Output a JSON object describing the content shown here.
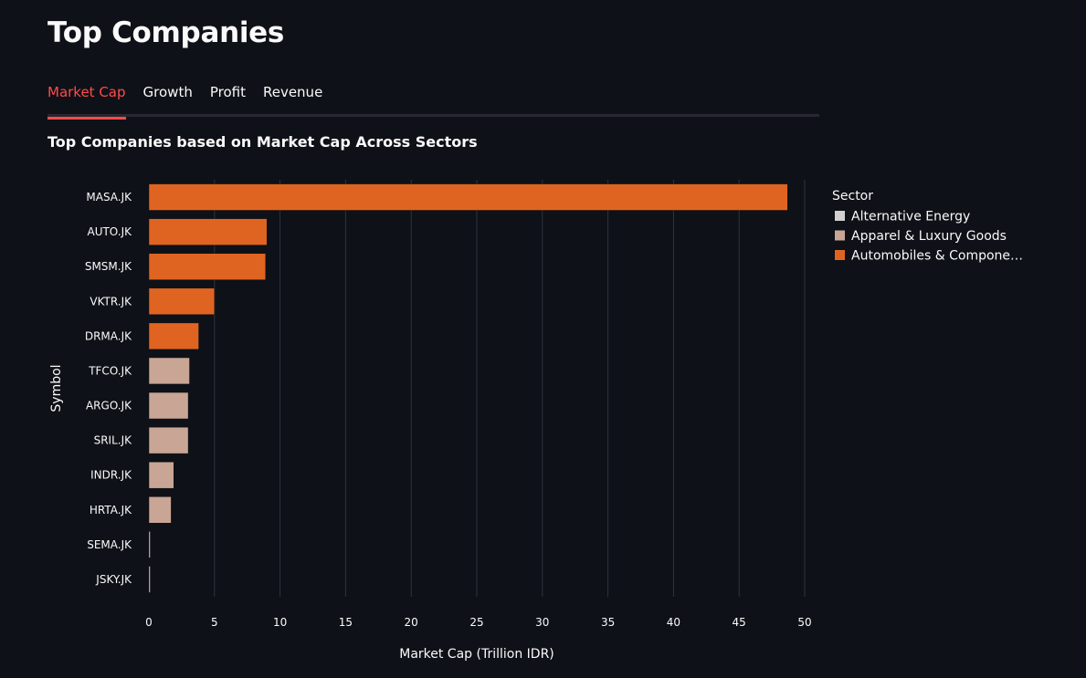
{
  "header": {
    "title": "Top Companies"
  },
  "tabs": [
    {
      "label": "Market Cap",
      "active": true
    },
    {
      "label": "Growth",
      "active": false
    },
    {
      "label": "Profit",
      "active": false
    },
    {
      "label": "Revenue",
      "active": false
    }
  ],
  "colors": {
    "accent": "#ff4b4b",
    "background": "#0e1117",
    "grid": "#31333f"
  },
  "chart_data": {
    "type": "bar",
    "orientation": "horizontal",
    "title": "Top Companies based on Market Cap Across Sectors",
    "xlabel": "Market Cap (Trillion IDR)",
    "ylabel": "Symbol",
    "xlim": [
      0,
      50
    ],
    "xticks": [
      0,
      5,
      10,
      15,
      20,
      25,
      30,
      35,
      40,
      45,
      50
    ],
    "grid": true,
    "legend": {
      "title": "Sector",
      "position": "right",
      "entries": [
        {
          "name": "Alternative Energy",
          "color": "#d3d1cf"
        },
        {
          "name": "Apparel & Luxury Goods",
          "color": "#c9a595"
        },
        {
          "name": "Automobiles & Compone…",
          "color": "#e06421"
        }
      ]
    },
    "categories": [
      "MASA.JK",
      "AUTO.JK",
      "SMSM.JK",
      "VKTR.JK",
      "DRMA.JK",
      "TFCO.JK",
      "ARGO.JK",
      "SRIL.JK",
      "INDR.JK",
      "HRTA.JK",
      "SEMA.JK",
      "JSKY.JK"
    ],
    "values": [
      48.7,
      9.0,
      8.9,
      5.0,
      3.8,
      3.1,
      3.0,
      3.0,
      1.9,
      1.7,
      0.1,
      0.05
    ],
    "sectors": [
      "Automobiles & Compone…",
      "Automobiles & Compone…",
      "Automobiles & Compone…",
      "Automobiles & Compone…",
      "Automobiles & Compone…",
      "Apparel & Luxury Goods",
      "Apparel & Luxury Goods",
      "Apparel & Luxury Goods",
      "Apparel & Luxury Goods",
      "Apparel & Luxury Goods",
      "Alternative Energy",
      "Alternative Energy"
    ]
  }
}
